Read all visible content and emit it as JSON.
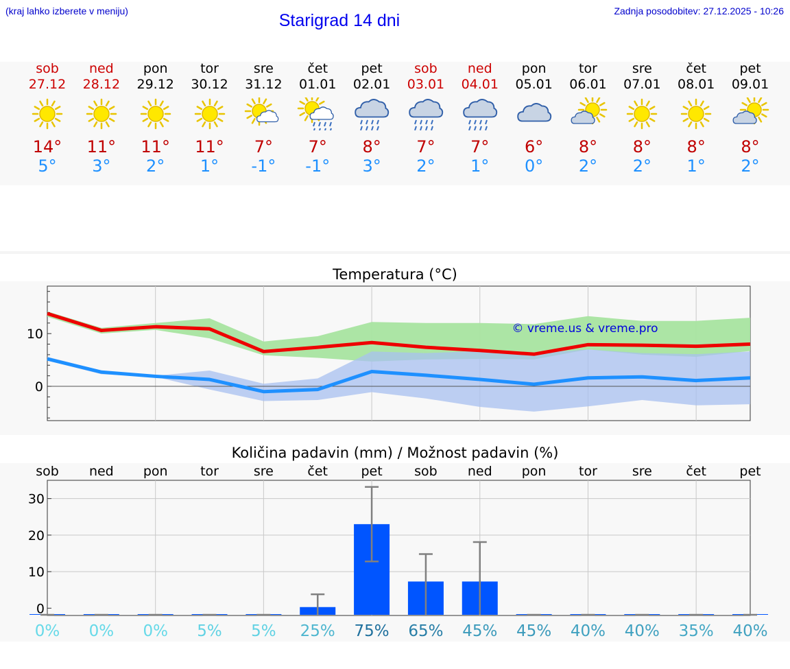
{
  "header": {
    "hint": "(kraj lahko izberete v meniju)",
    "title": "Starigrad 14 dni",
    "updated": "Zadnja posodobitev: 27.12.2025 - 10:26"
  },
  "days": [
    {
      "name": "sob",
      "date": "27.12",
      "weekend": true,
      "icon": "sun-icon",
      "max": "14°",
      "min": "5°"
    },
    {
      "name": "ned",
      "date": "28.12",
      "weekend": true,
      "icon": "sun-icon",
      "max": "11°",
      "min": "3°"
    },
    {
      "name": "pon",
      "date": "29.12",
      "weekend": false,
      "icon": "sun-icon",
      "max": "11°",
      "min": "2°"
    },
    {
      "name": "tor",
      "date": "30.12",
      "weekend": false,
      "icon": "sun-icon",
      "max": "11°",
      "min": "1°"
    },
    {
      "name": "sre",
      "date": "31.12",
      "weekend": false,
      "icon": "sun-cloud-icon",
      "max": "7°",
      "min": "-1°"
    },
    {
      "name": "čet",
      "date": "01.01",
      "weekend": false,
      "icon": "sun-rain-icon",
      "max": "7°",
      "min": "-1°"
    },
    {
      "name": "pet",
      "date": "02.01",
      "weekend": false,
      "icon": "rain-icon",
      "max": "8°",
      "min": "3°"
    },
    {
      "name": "sob",
      "date": "03.01",
      "weekend": true,
      "icon": "rain-icon",
      "max": "7°",
      "min": "2°"
    },
    {
      "name": "ned",
      "date": "04.01",
      "weekend": true,
      "icon": "rain-icon",
      "max": "7°",
      "min": "1°"
    },
    {
      "name": "pon",
      "date": "05.01",
      "weekend": false,
      "icon": "cloud-icon",
      "max": "6°",
      "min": "0°"
    },
    {
      "name": "tor",
      "date": "06.01",
      "weekend": false,
      "icon": "cloud-sun-icon",
      "max": "8°",
      "min": "2°"
    },
    {
      "name": "sre",
      "date": "07.01",
      "weekend": false,
      "icon": "sun-icon",
      "max": "8°",
      "min": "2°"
    },
    {
      "name": "čet",
      "date": "08.01",
      "weekend": false,
      "icon": "sun-icon",
      "max": "8°",
      "min": "1°"
    },
    {
      "name": "pet",
      "date": "09.01",
      "weekend": false,
      "icon": "cloud-sun-icon",
      "max": "8°",
      "min": "2°"
    }
  ],
  "colors": {
    "weekend": "#cc0000",
    "weekday": "#000000",
    "max_temp": "#c00000",
    "min_temp": "#1e90ff",
    "max_line": "#ee0000",
    "min_line": "#1e90ff",
    "max_band": "#a8e4a0",
    "min_band": "#a8c0f0",
    "bar": "#0055ff",
    "error": "#808080"
  },
  "chart_data": [
    {
      "type": "line",
      "title": "Temperatura (°C)",
      "watermark": "© vreme.us & vreme.pro",
      "x": [
        0,
        1,
        2,
        3,
        4,
        5,
        6,
        7,
        8,
        9,
        10,
        11,
        12,
        13
      ],
      "ylim": [
        -6.5,
        19
      ],
      "yticks": [
        0,
        10
      ],
      "series": [
        {
          "name": "max",
          "values": [
            13.8,
            10.6,
            11.3,
            10.9,
            6.6,
            7.4,
            8.3,
            7.4,
            6.8,
            6.1,
            7.9,
            7.8,
            7.6,
            8.0
          ]
        },
        {
          "name": "min",
          "values": [
            5.2,
            2.7,
            1.9,
            1.3,
            -1.0,
            -0.6,
            2.8,
            2.1,
            1.3,
            0.4,
            1.6,
            1.8,
            1.1,
            1.6
          ]
        }
      ],
      "bands": [
        {
          "name": "max_range",
          "upper": [
            14.2,
            11.1,
            12.0,
            12.9,
            8.5,
            9.5,
            12.2,
            12.0,
            12.0,
            11.8,
            13.3,
            12.4,
            12.4,
            13.0
          ],
          "lower": [
            13.2,
            10.0,
            10.7,
            9.1,
            5.9,
            5.4,
            4.7,
            5.1,
            5.2,
            5.1,
            7.0,
            6.0,
            5.6,
            6.7
          ]
        },
        {
          "name": "min_range",
          "upper": [
            5.6,
            3.0,
            2.0,
            3.0,
            0.5,
            1.5,
            6.6,
            6.3,
            6.7,
            6.3,
            7.0,
            6.3,
            6.1,
            6.6
          ],
          "lower": [
            4.9,
            2.3,
            1.8,
            -0.6,
            -2.8,
            -2.6,
            -1.1,
            -2.3,
            -3.9,
            -4.8,
            -3.8,
            -2.6,
            -3.6,
            -3.4
          ]
        }
      ]
    },
    {
      "type": "bar",
      "title": "Količina padavin (mm) / Možnost padavin (%)",
      "categories": [
        "sob",
        "ned",
        "pon",
        "tor",
        "sre",
        "čet",
        "pet",
        "sob",
        "ned",
        "pon",
        "tor",
        "sre",
        "čet",
        "pet"
      ],
      "values": [
        0,
        0,
        0,
        0,
        0,
        0.3,
        23,
        7.3,
        7.3,
        0,
        0,
        0,
        0,
        0
      ],
      "error_low": [
        0,
        0,
        0,
        0,
        0,
        0,
        12.8,
        0,
        0,
        0,
        0,
        0,
        0,
        0
      ],
      "error_high": [
        0,
        0,
        0,
        0,
        0,
        3.8,
        33.2,
        14.8,
        18.1,
        0,
        0,
        0,
        0,
        0
      ],
      "probability": [
        "0%",
        "0%",
        "0%",
        "5%",
        "5%",
        "25%",
        "75%",
        "65%",
        "45%",
        "45%",
        "40%",
        "40%",
        "35%",
        "40%"
      ],
      "probability_values": [
        0,
        0,
        0,
        5,
        5,
        25,
        75,
        65,
        45,
        45,
        40,
        40,
        35,
        40
      ],
      "ylim": [
        -2,
        35
      ],
      "yticks": [
        0,
        10,
        20,
        30
      ]
    }
  ]
}
